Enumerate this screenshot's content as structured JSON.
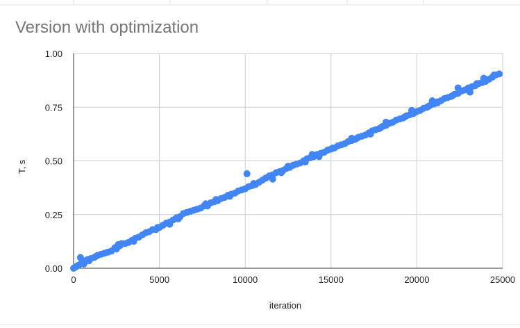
{
  "chart_data": {
    "type": "scatter",
    "title": "Version with optimization",
    "xlabel": "iteration",
    "ylabel": "T, s",
    "xlim": [
      0,
      25000
    ],
    "ylim": [
      0,
      1.0
    ],
    "x_ticks": [
      "0",
      "5000",
      "10000",
      "15000",
      "20000",
      "25000"
    ],
    "y_ticks": [
      "0.00",
      "0.25",
      "0.50",
      "0.75",
      "1.00"
    ],
    "grid": true,
    "legend": "none",
    "series": [
      {
        "color": "#4285f4",
        "points": [
          [
            0,
            0.0
          ],
          [
            100,
            0.005
          ],
          [
            200,
            0.01
          ],
          [
            300,
            0.015
          ],
          [
            400,
            0.05
          ],
          [
            500,
            0.03
          ],
          [
            600,
            0.02
          ],
          [
            700,
            0.035
          ],
          [
            800,
            0.04
          ],
          [
            900,
            0.035
          ],
          [
            1000,
            0.045
          ],
          [
            1200,
            0.05
          ],
          [
            1400,
            0.06
          ],
          [
            1600,
            0.065
          ],
          [
            1800,
            0.07
          ],
          [
            2000,
            0.075
          ],
          [
            2200,
            0.08
          ],
          [
            2400,
            0.095
          ],
          [
            2600,
            0.11
          ],
          [
            2800,
            0.115
          ],
          [
            3000,
            0.115
          ],
          [
            3200,
            0.12
          ],
          [
            3400,
            0.13
          ],
          [
            3600,
            0.14
          ],
          [
            3800,
            0.145
          ],
          [
            4000,
            0.155
          ],
          [
            4200,
            0.165
          ],
          [
            4400,
            0.17
          ],
          [
            4600,
            0.18
          ],
          [
            4800,
            0.18
          ],
          [
            5000,
            0.19
          ],
          [
            5200,
            0.2
          ],
          [
            5400,
            0.21
          ],
          [
            5600,
            0.215
          ],
          [
            5800,
            0.225
          ],
          [
            6000,
            0.235
          ],
          [
            6200,
            0.24
          ],
          [
            6400,
            0.255
          ],
          [
            6600,
            0.26
          ],
          [
            6800,
            0.265
          ],
          [
            7000,
            0.27
          ],
          [
            7200,
            0.275
          ],
          [
            7400,
            0.28
          ],
          [
            7600,
            0.29
          ],
          [
            7800,
            0.29
          ],
          [
            8000,
            0.305
          ],
          [
            8200,
            0.31
          ],
          [
            8400,
            0.315
          ],
          [
            8600,
            0.325
          ],
          [
            8800,
            0.33
          ],
          [
            9000,
            0.34
          ],
          [
            9200,
            0.345
          ],
          [
            9400,
            0.35
          ],
          [
            9600,
            0.36
          ],
          [
            9800,
            0.365
          ],
          [
            10000,
            0.37
          ],
          [
            10200,
            0.38
          ],
          [
            10400,
            0.385
          ],
          [
            10600,
            0.39
          ],
          [
            10800,
            0.4
          ],
          [
            11000,
            0.41
          ],
          [
            11200,
            0.42
          ],
          [
            11400,
            0.43
          ],
          [
            11600,
            0.435
          ],
          [
            11800,
            0.445
          ],
          [
            12000,
            0.45
          ],
          [
            12200,
            0.455
          ],
          [
            12400,
            0.465
          ],
          [
            12600,
            0.47
          ],
          [
            12800,
            0.48
          ],
          [
            13000,
            0.485
          ],
          [
            13200,
            0.49
          ],
          [
            13400,
            0.5
          ],
          [
            13600,
            0.51
          ],
          [
            13800,
            0.515
          ],
          [
            14000,
            0.52
          ],
          [
            14200,
            0.53
          ],
          [
            14400,
            0.535
          ],
          [
            14600,
            0.54
          ],
          [
            14800,
            0.55
          ],
          [
            15000,
            0.555
          ],
          [
            15200,
            0.56
          ],
          [
            15400,
            0.57
          ],
          [
            15600,
            0.575
          ],
          [
            15800,
            0.58
          ],
          [
            16000,
            0.59
          ],
          [
            16200,
            0.595
          ],
          [
            16400,
            0.6
          ],
          [
            16600,
            0.61
          ],
          [
            16800,
            0.615
          ],
          [
            17000,
            0.62
          ],
          [
            17200,
            0.63
          ],
          [
            17400,
            0.64
          ],
          [
            17600,
            0.645
          ],
          [
            17800,
            0.65
          ],
          [
            18000,
            0.66
          ],
          [
            18200,
            0.665
          ],
          [
            18400,
            0.675
          ],
          [
            18600,
            0.68
          ],
          [
            18800,
            0.69
          ],
          [
            19000,
            0.695
          ],
          [
            19200,
            0.7
          ],
          [
            19400,
            0.71
          ],
          [
            19600,
            0.715
          ],
          [
            19800,
            0.72
          ],
          [
            20000,
            0.73
          ],
          [
            20200,
            0.735
          ],
          [
            20400,
            0.745
          ],
          [
            20600,
            0.75
          ],
          [
            20800,
            0.76
          ],
          [
            21000,
            0.765
          ],
          [
            21200,
            0.775
          ],
          [
            21400,
            0.78
          ],
          [
            21600,
            0.79
          ],
          [
            21800,
            0.795
          ],
          [
            22000,
            0.8
          ],
          [
            22200,
            0.81
          ],
          [
            22400,
            0.815
          ],
          [
            22600,
            0.825
          ],
          [
            22800,
            0.83
          ],
          [
            23000,
            0.84
          ],
          [
            23200,
            0.845
          ],
          [
            23400,
            0.85
          ],
          [
            23600,
            0.86
          ],
          [
            23800,
            0.865
          ],
          [
            24000,
            0.875
          ],
          [
            24200,
            0.88
          ],
          [
            24400,
            0.89
          ],
          [
            24600,
            0.9
          ],
          [
            24800,
            0.905
          ],
          [
            1300,
            0.055
          ],
          [
            2500,
            0.09
          ],
          [
            3500,
            0.125
          ],
          [
            4900,
            0.19
          ],
          [
            6100,
            0.23
          ],
          [
            7700,
            0.3
          ],
          [
            9100,
            0.335
          ],
          [
            10500,
            0.395
          ],
          [
            12100,
            0.445
          ],
          [
            13500,
            0.495
          ],
          [
            15100,
            0.56
          ],
          [
            16500,
            0.605
          ],
          [
            17900,
            0.655
          ],
          [
            19300,
            0.705
          ],
          [
            20700,
            0.755
          ],
          [
            22100,
            0.805
          ],
          [
            23500,
            0.86
          ],
          [
            24500,
            0.9
          ],
          [
            10100,
            0.44
          ],
          [
            11600,
            0.415
          ],
          [
            12500,
            0.475
          ],
          [
            13900,
            0.53
          ],
          [
            14300,
            0.52
          ],
          [
            16200,
            0.605
          ],
          [
            17300,
            0.625
          ],
          [
            18200,
            0.68
          ],
          [
            19700,
            0.735
          ],
          [
            21200,
            0.77
          ],
          [
            22400,
            0.84
          ],
          [
            23900,
            0.885
          ],
          [
            2700,
            0.105
          ],
          [
            5600,
            0.205
          ],
          [
            8300,
            0.32
          ],
          [
            20900,
            0.78
          ],
          [
            23100,
            0.82
          ],
          [
            24000,
            0.87
          ]
        ]
      }
    ]
  }
}
